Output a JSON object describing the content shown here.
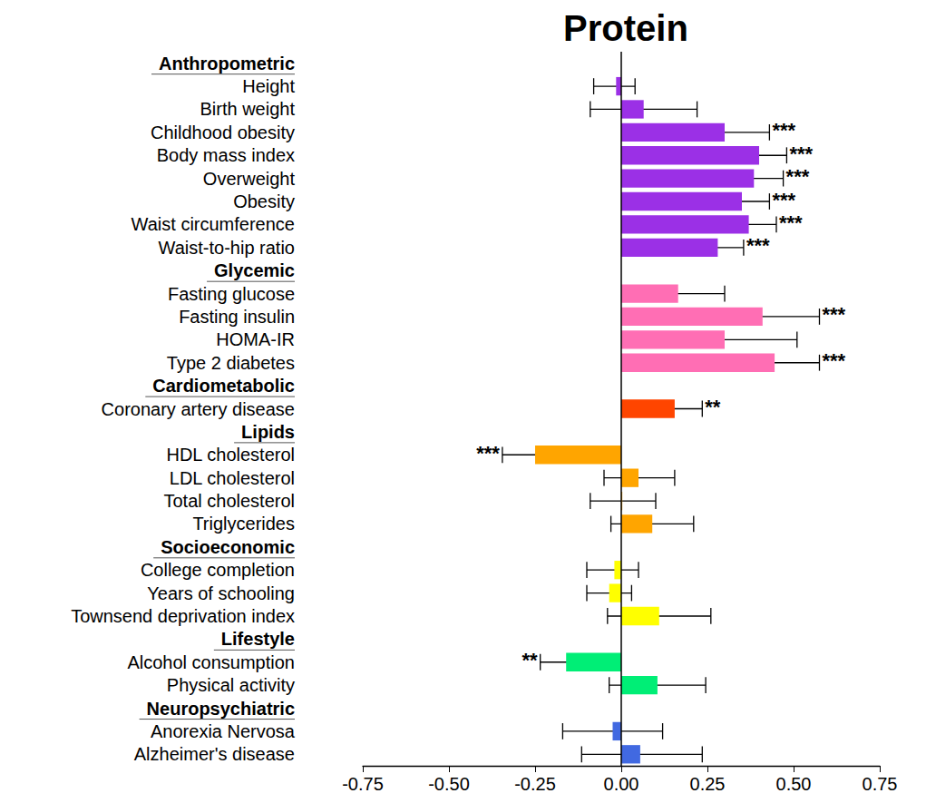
{
  "chart_data": {
    "type": "bar",
    "orientation": "horizontal",
    "title": "Protein",
    "xlim": [
      -0.75,
      0.75
    ],
    "xticks": [
      -0.75,
      {
        "value": -0.5,
        "label": "-0.50"
      },
      -0.25,
      {
        "value": 0,
        "label": "0.00"
      },
      0.25,
      {
        "value": 0.5,
        "label": "0.50"
      },
      0.75
    ],
    "grid": false,
    "series": [
      {
        "name": "Anthropometric",
        "color": "#9b30e6",
        "categories": [
          "Height",
          "Birth weight",
          "Childhood obesity",
          "Body mass index",
          "Overweight",
          "Obesity",
          "Waist circumference",
          "Waist-to-hip ratio"
        ],
        "values": [
          -0.015,
          0.065,
          0.3,
          0.4,
          0.385,
          0.35,
          0.37,
          0.28
        ],
        "ci_lower": [
          -0.08,
          -0.09,
          0.18,
          0.32,
          0.29,
          0.27,
          0.28,
          0.21
        ],
        "ci_upper": [
          0.04,
          0.22,
          0.43,
          0.48,
          0.47,
          0.43,
          0.45,
          0.355
        ],
        "significance": [
          null,
          null,
          "***",
          "***",
          "***",
          "***",
          "***",
          "***"
        ]
      },
      {
        "name": "Glycemic",
        "color": "#ff6eb4",
        "categories": [
          "Fasting glucose",
          "Fasting insulin",
          "HOMA-IR",
          "Type 2 diabetes"
        ],
        "values": [
          0.165,
          0.41,
          0.3,
          0.445
        ],
        "ci_lower": [
          0.03,
          0.25,
          0.1,
          0.32
        ],
        "ci_upper": [
          0.3,
          0.575,
          0.51,
          0.575
        ],
        "significance": [
          null,
          "***",
          null,
          "***"
        ]
      },
      {
        "name": "Cardiometabolic",
        "color": "#ff4500",
        "categories": [
          "Coronary artery disease"
        ],
        "values": [
          0.155
        ],
        "ci_lower": [
          0.07
        ],
        "ci_upper": [
          0.235
        ],
        "significance": [
          "**"
        ]
      },
      {
        "name": "Lipids",
        "color": "#ffa500",
        "categories": [
          "HDL cholesterol",
          "LDL cholesterol",
          "Total cholesterol",
          "Triglycerides"
        ],
        "values": [
          -0.25,
          0.05,
          0.003,
          0.09
        ],
        "ci_lower": [
          -0.345,
          -0.05,
          -0.09,
          -0.03
        ],
        "ci_upper": [
          -0.155,
          0.155,
          0.1,
          0.21
        ],
        "significance": [
          "***",
          null,
          null,
          null
        ]
      },
      {
        "name": "Socioeconomic",
        "color": "#ffff00",
        "categories": [
          "College completion",
          "Years of schooling",
          "Townsend deprivation index"
        ],
        "values": [
          -0.02,
          -0.035,
          0.11
        ],
        "ci_lower": [
          -0.1,
          -0.1,
          -0.04
        ],
        "ci_upper": [
          0.05,
          0.03,
          0.26
        ],
        "significance": [
          null,
          null,
          null
        ]
      },
      {
        "name": "Lifestyle",
        "color": "#00ee76",
        "categories": [
          "Alcohol consumption",
          "Physical activity"
        ],
        "values": [
          -0.16,
          0.105
        ],
        "ci_lower": [
          -0.235,
          -0.035
        ],
        "ci_upper": [
          -0.08,
          0.245
        ],
        "significance": [
          "**",
          null
        ]
      },
      {
        "name": "Neuropsychiatric",
        "color": "#4169e1",
        "categories": [
          "Anorexia Nervosa",
          "Alzheimer's disease"
        ],
        "values": [
          -0.025,
          0.055
        ],
        "ci_lower": [
          -0.17,
          -0.115
        ],
        "ci_upper": [
          0.12,
          0.235
        ],
        "significance": [
          null,
          null
        ]
      }
    ]
  }
}
